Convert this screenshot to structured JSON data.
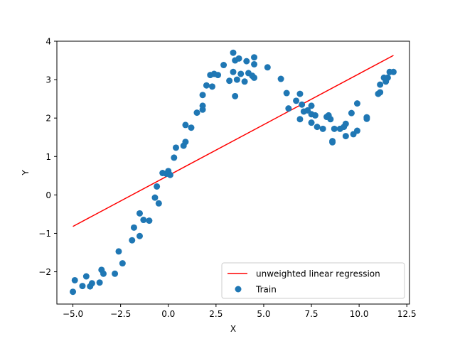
{
  "chart_data": {
    "type": "scatter",
    "title": "",
    "xlabel": "X",
    "ylabel": "Y",
    "xlim": [
      -5.84,
      12.64
    ],
    "ylim": [
      -2.84,
      4.0
    ],
    "xticks": [
      -5.0,
      -2.5,
      0.0,
      2.5,
      5.0,
      7.5,
      10.0,
      12.5
    ],
    "xtick_labels": [
      "−5.0",
      "−2.5",
      "0.0",
      "2.5",
      "5.0",
      "7.5",
      "10.0",
      "12.5"
    ],
    "yticks": [
      -2,
      -1,
      0,
      1,
      2,
      3,
      4
    ],
    "ytick_labels": [
      "−2",
      "−1",
      "0",
      "1",
      "2",
      "3",
      "4"
    ],
    "grid": false,
    "legend": {
      "position": "bottom-right",
      "entries": [
        "unweighted linear regression",
        "Train"
      ]
    },
    "series": [
      {
        "name": "unweighted linear regression",
        "kind": "line",
        "color": "#ff0000",
        "x": [
          -5.0,
          11.8
        ],
        "y": [
          -0.82,
          3.63
        ]
      },
      {
        "name": "Train",
        "kind": "scatter",
        "color": "#1f77b4",
        "points": [
          [
            -5.0,
            -2.52
          ],
          [
            -4.9,
            -2.22
          ],
          [
            -4.5,
            -2.37
          ],
          [
            -4.3,
            -2.12
          ],
          [
            -4.1,
            -2.38
          ],
          [
            -4.0,
            -2.3
          ],
          [
            -3.6,
            -2.28
          ],
          [
            -3.5,
            -1.95
          ],
          [
            -3.4,
            -2.05
          ],
          [
            -2.8,
            -2.05
          ],
          [
            -2.6,
            -1.47
          ],
          [
            -2.4,
            -1.78
          ],
          [
            -1.9,
            -1.18
          ],
          [
            -1.8,
            -0.85
          ],
          [
            -1.5,
            -0.48
          ],
          [
            -1.5,
            -1.07
          ],
          [
            -1.3,
            -0.65
          ],
          [
            -1.0,
            -0.67
          ],
          [
            -0.7,
            -0.07
          ],
          [
            -0.6,
            0.22
          ],
          [
            -0.5,
            -0.22
          ],
          [
            -0.3,
            0.57
          ],
          [
            -0.1,
            0.55
          ],
          [
            0.0,
            0.62
          ],
          [
            0.1,
            0.52
          ],
          [
            0.3,
            0.97
          ],
          [
            0.4,
            1.23
          ],
          [
            0.8,
            1.28
          ],
          [
            0.9,
            1.82
          ],
          [
            0.9,
            1.38
          ],
          [
            1.2,
            1.75
          ],
          [
            1.5,
            2.14
          ],
          [
            1.8,
            2.22
          ],
          [
            1.8,
            2.32
          ],
          [
            1.8,
            2.6
          ],
          [
            2.0,
            2.85
          ],
          [
            2.2,
            3.12
          ],
          [
            2.3,
            2.82
          ],
          [
            2.4,
            3.15
          ],
          [
            2.6,
            3.12
          ],
          [
            2.9,
            3.38
          ],
          [
            3.2,
            2.97
          ],
          [
            3.4,
            3.7
          ],
          [
            3.4,
            3.2
          ],
          [
            3.5,
            2.57
          ],
          [
            3.5,
            3.5
          ],
          [
            3.6,
            3.0
          ],
          [
            3.7,
            3.55
          ],
          [
            3.8,
            3.15
          ],
          [
            4.0,
            2.95
          ],
          [
            4.1,
            3.48
          ],
          [
            4.2,
            3.17
          ],
          [
            4.4,
            3.1
          ],
          [
            4.5,
            3.58
          ],
          [
            4.5,
            3.4
          ],
          [
            4.5,
            3.05
          ],
          [
            5.2,
            3.32
          ],
          [
            5.9,
            3.02
          ],
          [
            6.2,
            2.65
          ],
          [
            6.3,
            2.25
          ],
          [
            6.7,
            2.45
          ],
          [
            6.9,
            2.63
          ],
          [
            6.9,
            1.97
          ],
          [
            7.0,
            2.35
          ],
          [
            7.1,
            2.17
          ],
          [
            7.3,
            2.2
          ],
          [
            7.5,
            2.32
          ],
          [
            7.5,
            2.1
          ],
          [
            7.5,
            1.88
          ],
          [
            7.7,
            2.07
          ],
          [
            7.8,
            1.77
          ],
          [
            8.1,
            1.72
          ],
          [
            8.3,
            2.03
          ],
          [
            8.4,
            2.07
          ],
          [
            8.5,
            1.97
          ],
          [
            8.6,
            1.4
          ],
          [
            8.6,
            1.37
          ],
          [
            8.7,
            1.72
          ],
          [
            9.0,
            1.72
          ],
          [
            9.2,
            1.77
          ],
          [
            9.3,
            1.85
          ],
          [
            9.3,
            1.53
          ],
          [
            9.6,
            2.13
          ],
          [
            9.7,
            1.58
          ],
          [
            9.9,
            2.38
          ],
          [
            9.9,
            1.67
          ],
          [
            10.4,
            1.98
          ],
          [
            10.4,
            2.02
          ],
          [
            11.0,
            2.63
          ],
          [
            11.1,
            2.67
          ],
          [
            11.1,
            2.87
          ],
          [
            11.3,
            3.05
          ],
          [
            11.4,
            2.95
          ],
          [
            11.5,
            3.05
          ],
          [
            11.6,
            3.2
          ],
          [
            11.8,
            3.2
          ]
        ]
      }
    ]
  }
}
